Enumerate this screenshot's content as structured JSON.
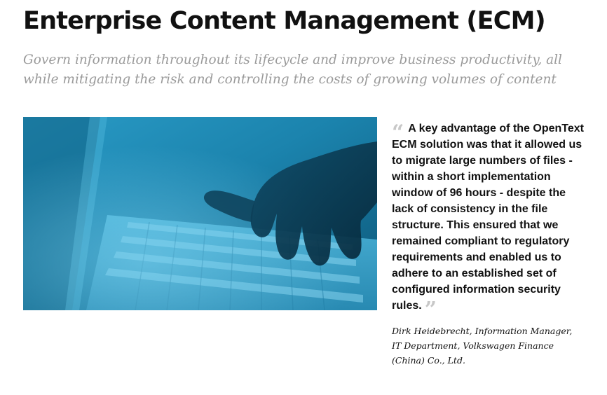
{
  "header": {
    "title": "Enterprise Content Management (ECM)",
    "subtitle": "Govern information throughout its lifecycle and improve business productivity, all while mitigating the risk and controlling the costs of growing volumes of content"
  },
  "quote": {
    "open_mark": "“",
    "text": "A key advantage of the OpenText ECM solution was that it allowed us to migrate large numbers of files - within a short implementation window of 96 hours - despite the lack of consistency in the file structure. This ensured that we remained compliant to regulatory requirements and enabled us to adhere to an established set of configured information security rules.",
    "close_mark": "”",
    "attribution": "Dirk Heidebrecht, Information Manager, IT Department, Volkswagen Finance (China) Co., Ltd."
  },
  "image": {
    "subject": "hand-typing-on-keyboard-photo",
    "tint_color": "#1a7fa6"
  },
  "colors": {
    "title": "#111111",
    "subtitle": "#9a9a9a",
    "quote_mark": "#c8c8c8"
  }
}
